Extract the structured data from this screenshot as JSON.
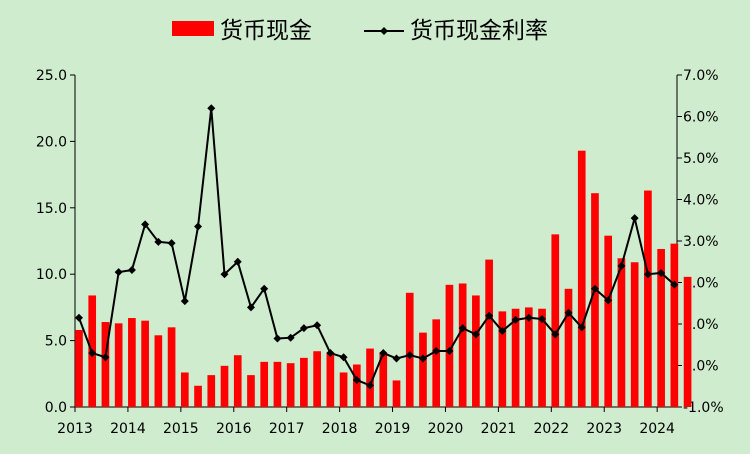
{
  "chart_data": {
    "type": "bar",
    "legend_position": "top-center",
    "grid": false,
    "x_tick_labels": [
      "2013",
      "2014",
      "2015",
      "2016",
      "2017",
      "2018",
      "2019",
      "2020",
      "2021",
      "2022",
      "2023",
      "2024"
    ],
    "y_left": {
      "range": [
        0,
        25
      ],
      "ticks": [
        "0.0",
        "5.0",
        "10.0",
        "15.0",
        "20.0",
        "25.0"
      ]
    },
    "y_right": {
      "range": [
        -1.0,
        7.0
      ],
      "ticks": [
        "-1.0%",
        "0.0%",
        "1.0%",
        "2.0%",
        "3.0%",
        "4.0%",
        "5.0%",
        "6.0%",
        "7.0%"
      ]
    },
    "series": [
      {
        "name": "货币现金",
        "type": "bar",
        "axis": "left",
        "color": "#ff0000",
        "values": [
          5.8,
          8.4,
          6.4,
          6.3,
          6.7,
          6.5,
          5.4,
          6.0,
          2.6,
          1.6,
          2.4,
          3.1,
          3.9,
          2.4,
          3.4,
          3.4,
          3.3,
          3.7,
          4.2,
          4.1,
          2.6,
          3.2,
          4.4,
          4.1,
          2.0,
          8.6,
          5.6,
          6.6,
          9.2,
          9.3,
          8.4,
          11.1,
          7.2,
          7.4,
          7.5,
          7.4,
          13.0,
          8.9,
          19.3,
          16.1,
          12.9,
          11.2,
          10.9,
          16.3,
          11.9,
          12.3,
          9.8
        ]
      },
      {
        "name": "货币现金利率",
        "type": "line",
        "axis": "right",
        "color": "#000000",
        "marker": "diamond",
        "values": [
          1.15,
          0.3,
          0.2,
          2.25,
          2.3,
          3.4,
          2.98,
          2.95,
          1.55,
          3.35,
          6.2,
          2.2,
          2.5,
          1.4,
          1.85,
          0.65,
          0.67,
          0.9,
          0.97,
          0.3,
          0.2,
          -0.35,
          -0.48,
          0.3,
          0.17,
          0.25,
          0.17,
          0.35,
          0.35,
          0.9,
          0.75,
          1.2,
          0.83,
          1.1,
          1.15,
          1.12,
          0.75,
          1.27,
          0.92,
          1.85,
          1.57,
          2.4,
          3.55,
          2.2,
          2.23,
          1.95
        ]
      }
    ]
  }
}
